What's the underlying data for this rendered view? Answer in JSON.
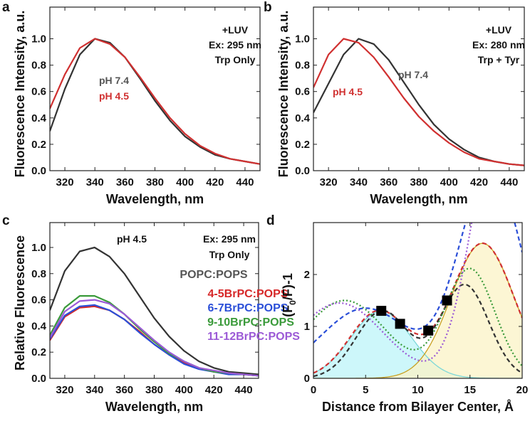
{
  "chart_data": [
    {
      "panel": "a",
      "type": "line",
      "xlabel": "Wavelength, nm",
      "ylabel": "Fluorescence Intensity, a.u.",
      "xlim": [
        310,
        450
      ],
      "ylim": [
        0,
        1.24
      ],
      "xticks": [
        320,
        340,
        360,
        380,
        400,
        420,
        440
      ],
      "yticks": [
        "0.0",
        "0.2",
        "0.4",
        "0.6",
        "0.8",
        "1.0"
      ],
      "x": [
        310,
        320,
        330,
        340,
        350,
        360,
        370,
        380,
        390,
        400,
        410,
        420,
        430,
        440,
        450
      ],
      "series": [
        {
          "name": "pH 7.4",
          "color": "#333333",
          "values": [
            0.3,
            0.62,
            0.88,
            1.0,
            0.97,
            0.86,
            0.7,
            0.53,
            0.38,
            0.26,
            0.18,
            0.12,
            0.09,
            0.07,
            0.05
          ]
        },
        {
          "name": "pH 4.5",
          "color": "#d03030",
          "values": [
            0.47,
            0.73,
            0.93,
            1.0,
            0.96,
            0.86,
            0.71,
            0.55,
            0.4,
            0.28,
            0.19,
            0.13,
            0.09,
            0.07,
            0.05
          ]
        }
      ],
      "annotations": [
        {
          "text": "+LUV",
          "color": "#111111"
        },
        {
          "text": "Ex: 295 nm",
          "color": "#111111"
        },
        {
          "text": "Trp Only",
          "color": "#111111"
        },
        {
          "text": "pH 7.4",
          "color": "#555555"
        },
        {
          "text": "pH 4.5",
          "color": "#d03030"
        }
      ]
    },
    {
      "panel": "b",
      "type": "line",
      "xlabel": "Wavelength, nm",
      "ylabel": "Fluorescence Intensity, a.u.",
      "xlim": [
        310,
        450
      ],
      "ylim": [
        0,
        1.24
      ],
      "xticks": [
        320,
        340,
        360,
        380,
        400,
        420,
        440
      ],
      "yticks": [
        "0.0",
        "0.2",
        "0.4",
        "0.6",
        "0.8",
        "1.0"
      ],
      "x": [
        310,
        320,
        330,
        340,
        350,
        360,
        370,
        380,
        390,
        400,
        410,
        420,
        430,
        440,
        450
      ],
      "series": [
        {
          "name": "pH 7.4",
          "color": "#333333",
          "values": [
            0.44,
            0.66,
            0.88,
            1.0,
            0.96,
            0.84,
            0.67,
            0.5,
            0.35,
            0.24,
            0.16,
            0.1,
            0.07,
            0.05,
            0.04
          ]
        },
        {
          "name": "pH 4.5",
          "color": "#d03030",
          "values": [
            0.63,
            0.88,
            1.0,
            0.97,
            0.86,
            0.71,
            0.55,
            0.41,
            0.3,
            0.21,
            0.14,
            0.09,
            0.07,
            0.05,
            0.04
          ]
        }
      ],
      "annotations": [
        {
          "text": "+LUV",
          "color": "#111111"
        },
        {
          "text": "Ex: 280 nm",
          "color": "#111111"
        },
        {
          "text": "Trp + Tyr",
          "color": "#111111"
        },
        {
          "text": "pH 7.4",
          "color": "#555555"
        },
        {
          "text": "pH 4.5",
          "color": "#d03030"
        }
      ]
    },
    {
      "panel": "c",
      "type": "line",
      "xlabel": "Wavelength, nm",
      "ylabel": "Relative Fluorescence",
      "xlim": [
        310,
        450
      ],
      "ylim": [
        0,
        1.19
      ],
      "xticks": [
        320,
        340,
        360,
        380,
        400,
        420,
        440
      ],
      "yticks": [
        "0.0",
        "0.2",
        "0.4",
        "0.6",
        "0.8",
        "1.0"
      ],
      "x": [
        310,
        320,
        330,
        340,
        350,
        360,
        370,
        380,
        390,
        400,
        410,
        420,
        430,
        440,
        450
      ],
      "series": [
        {
          "name": "POPC:POPS",
          "color": "#333333",
          "values": [
            0.52,
            0.82,
            0.97,
            1.0,
            0.93,
            0.8,
            0.63,
            0.46,
            0.32,
            0.21,
            0.13,
            0.08,
            0.05,
            0.04,
            0.03
          ]
        },
        {
          "name": "4-5BrPC:POPS",
          "color": "#d62728",
          "values": [
            0.29,
            0.47,
            0.54,
            0.55,
            0.52,
            0.45,
            0.36,
            0.26,
            0.18,
            0.12,
            0.08,
            0.05,
            0.04,
            0.03,
            0.02
          ]
        },
        {
          "name": "6-7BrPC:POPS",
          "color": "#2b4fd8",
          "values": [
            0.3,
            0.48,
            0.55,
            0.56,
            0.52,
            0.45,
            0.35,
            0.26,
            0.18,
            0.11,
            0.07,
            0.05,
            0.03,
            0.03,
            0.02
          ]
        },
        {
          "name": "9-10BrPC:POPS",
          "color": "#3a9a3a",
          "values": [
            0.33,
            0.54,
            0.63,
            0.63,
            0.58,
            0.49,
            0.38,
            0.28,
            0.19,
            0.13,
            0.08,
            0.05,
            0.04,
            0.03,
            0.02
          ]
        },
        {
          "name": "11-12BrPC:POPS",
          "color": "#9b59d6",
          "values": [
            0.31,
            0.51,
            0.59,
            0.6,
            0.57,
            0.49,
            0.39,
            0.29,
            0.2,
            0.13,
            0.08,
            0.06,
            0.04,
            0.03,
            0.02
          ]
        }
      ],
      "annotations": [
        {
          "text": "pH 4.5",
          "color": "#111111"
        },
        {
          "text": "Ex: 295 nm",
          "color": "#111111"
        },
        {
          "text": "Trp Only",
          "color": "#111111"
        },
        {
          "text": "POPC:POPS",
          "color": "#555555"
        },
        {
          "text": "4-5BrPC:POPS",
          "color": "#d62728"
        },
        {
          "text": "6-7BrPC:POPS",
          "color": "#2b4fd8"
        },
        {
          "text": "9-10BrPC:POPS",
          "color": "#3a9a3a"
        },
        {
          "text": "11-12BrPC:POPS",
          "color": "#9b59d6"
        }
      ]
    },
    {
      "panel": "d",
      "type": "scatter",
      "xlabel": "Distance from Bilayer Center, Å",
      "ylabel_main": "(F",
      "ylabel_sub": "0",
      "ylabel_rest": "/F)-1",
      "xlim": [
        0,
        20
      ],
      "ylim": [
        0,
        3.0
      ],
      "xticks": [
        0,
        5,
        10,
        15,
        20
      ],
      "yticks": [
        "0",
        "1",
        "2"
      ],
      "points": [
        {
          "x": 6.5,
          "y": 1.3
        },
        {
          "x": 8.3,
          "y": 1.05
        },
        {
          "x": 11.0,
          "y": 0.92
        },
        {
          "x": 12.8,
          "y": 1.5
        }
      ],
      "fills": [
        {
          "name": "shallow-component",
          "color": "#c8f6fa",
          "edge": "#7dd8d8",
          "gaussians": [
            [
              6.5,
              1.3,
              2.9
            ]
          ]
        },
        {
          "name": "deep-component",
          "color": "#fbf3c6",
          "edge": "#c8a020",
          "gaussians": [
            [
              16.2,
              2.6,
              3.0
            ]
          ]
        }
      ],
      "fits": [
        {
          "name": "red-fit",
          "color": "#d03030",
          "dash": "6,4",
          "gaussians": [
            [
              6.3,
              1.3,
              2.8
            ],
            [
              16.2,
              2.6,
              3.0
            ]
          ]
        },
        {
          "name": "black-fit",
          "color": "#333333",
          "dash": "6,4",
          "gaussians": [
            [
              6.6,
              1.3,
              2.5
            ],
            [
              14.5,
              1.8,
              2.3
            ]
          ]
        },
        {
          "name": "green-fit",
          "color": "#3a9a3a",
          "dash": "2,3",
          "gaussians": [
            [
              3.0,
              1.5,
              4.0
            ],
            [
              15.0,
              2.1,
              2.4
            ]
          ]
        },
        {
          "name": "purple-fit",
          "color": "#9b59d6",
          "dash": "2,3",
          "gaussians": [
            [
              2.5,
              1.45,
              4.2
            ],
            [
              17.8,
              5.0,
              2.6
            ]
          ]
        },
        {
          "name": "blue-fit",
          "color": "#2b4fd8",
          "dash": "6,4",
          "gaussians": [
            [
              5.0,
              1.35,
              4.3
            ],
            [
              17.0,
              4.0,
              3.0
            ]
          ]
        }
      ],
      "annotations": []
    }
  ]
}
